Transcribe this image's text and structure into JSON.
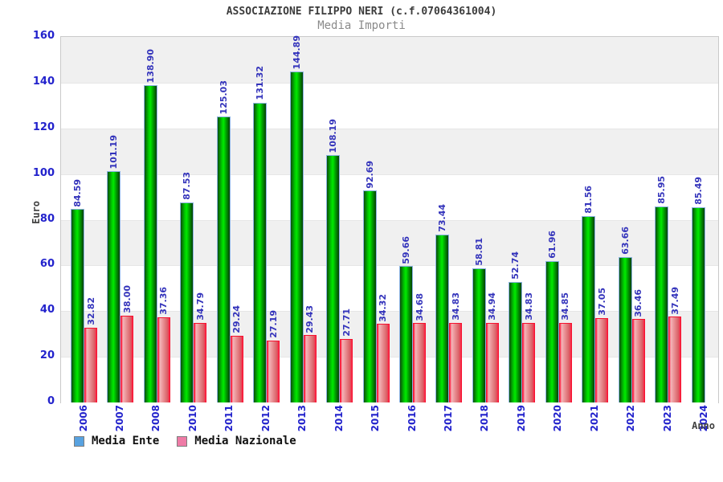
{
  "header": {
    "title": "ASSOCIAZIONE FILIPPO NERI (c.f.07064361004)",
    "subtitle": "Media Importi"
  },
  "axes": {
    "y_title": "Euro",
    "x_title": "Anno"
  },
  "legend": {
    "items": [
      {
        "label": "Media Ente",
        "swatch_color": "#58a2e0"
      },
      {
        "label": "Media Nazionale",
        "swatch_color": "#ee7ba6"
      }
    ]
  },
  "colors": {
    "tick_blue": "#2222cc",
    "value_label_blue": "#3333bb",
    "band_gray": "#f0f0f0",
    "plot_border": "#c9c9c9",
    "green_bar_bright": "#00ea00",
    "green_bar_dark": "#0b4d0b",
    "green_bar_border": "#8cb4e2",
    "red_bar_bright": "#ff2244",
    "red_bar_light": "#f4b4b8",
    "title_dark": "#3c3c3c",
    "subtitle_gray": "#8a8a8a"
  },
  "chart_data": {
    "type": "bar",
    "title": "ASSOCIAZIONE FILIPPO NERI (c.f.07064361004)",
    "subtitle": "Media Importi",
    "xlabel": "Anno",
    "ylabel": "Euro",
    "ylim": [
      0,
      160
    ],
    "yticks": [
      0,
      20,
      40,
      60,
      80,
      100,
      120,
      140,
      160
    ],
    "grid": "alternating-bands",
    "legend_position": "bottom-left",
    "categories": [
      "2006",
      "2007",
      "2008",
      "2010",
      "2011",
      "2012",
      "2013",
      "2014",
      "2015",
      "2016",
      "2017",
      "2018",
      "2019",
      "2020",
      "2021",
      "2022",
      "2023",
      "2024"
    ],
    "series": [
      {
        "name": "Media Ente",
        "color_style": "green-cylinder",
        "values": [
          "84.59",
          "101.19",
          "138.90",
          "87.53",
          "125.03",
          "131.32",
          "144.89",
          "108.19",
          "92.69",
          "59.66",
          "73.44",
          "58.81",
          "52.74",
          "61.96",
          "81.56",
          "63.66",
          "85.95",
          "85.49"
        ]
      },
      {
        "name": "Media Nazionale",
        "color_style": "red-cylinder",
        "values": [
          "32.82",
          "38.00",
          "37.36",
          "34.79",
          "29.24",
          "27.19",
          "29.43",
          "27.71",
          "34.32",
          "34.68",
          "34.83",
          "34.94",
          "34.83",
          "34.85",
          "37.05",
          "36.46",
          "37.49",
          null
        ]
      }
    ]
  }
}
